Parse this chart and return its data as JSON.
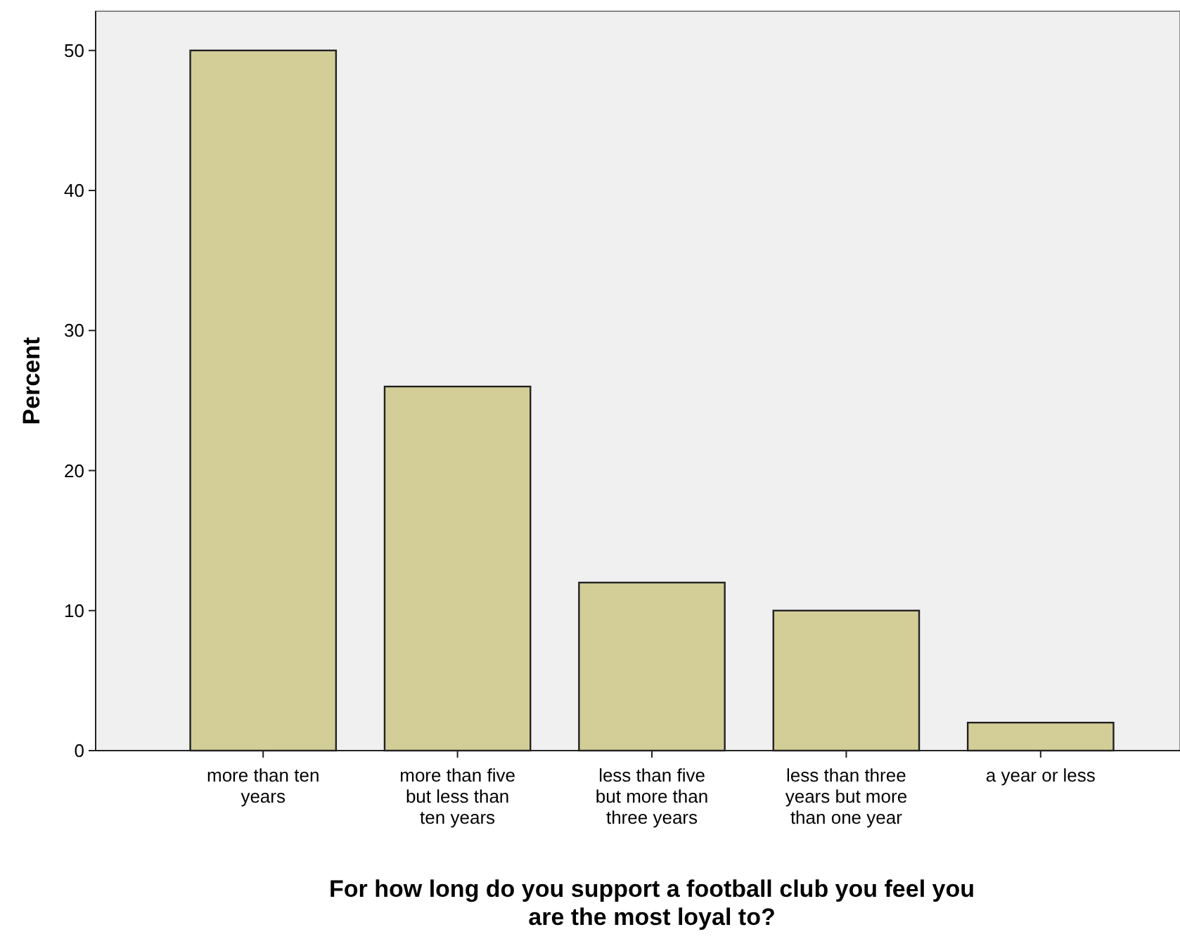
{
  "chart_data": {
    "type": "bar",
    "xlabel": "For how long do you support a football club you feel you are the most loyal to?",
    "ylabel": "Percent",
    "categories": [
      "more than ten years",
      "more than five but less than ten years",
      "less than five but more than three years",
      "less than three years but more than one year",
      "a year or less"
    ],
    "values": [
      50,
      26,
      12,
      10,
      2
    ],
    "color": "#d3ce97",
    "ylim": [
      0,
      52.8
    ],
    "yticks": [
      0,
      10,
      20,
      30,
      40,
      50
    ],
    "grid": false
  }
}
